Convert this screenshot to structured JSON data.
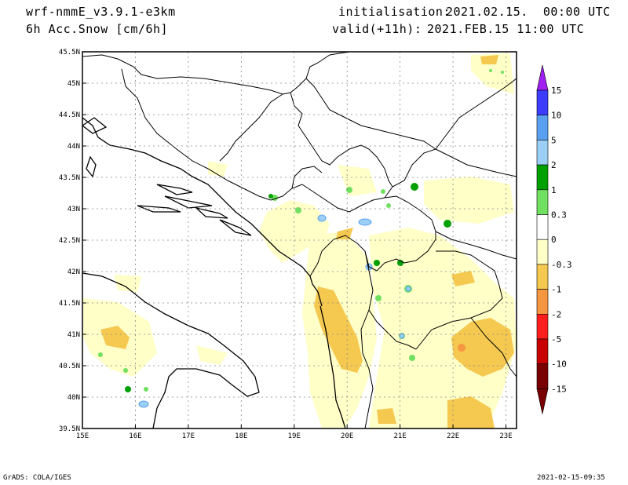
{
  "header": {
    "model": "wrf-nmmE_v3.9.1-e3km",
    "field": "6h Acc.Snow [cm/6h]",
    "init_label": "initialisation:",
    "init_value": "2021.02.15.  00:00 UTC",
    "valid_label": "valid(+11h):",
    "valid_value": "2021.FEB.15 11:00 UTC"
  },
  "map": {
    "lon_ticks": [
      "15E",
      "16E",
      "17E",
      "18E",
      "19E",
      "20E",
      "21E",
      "22E",
      "23E"
    ],
    "lat_ticks": [
      "45.5N",
      "45N",
      "44.5N",
      "44N",
      "43.5N",
      "43N",
      "42.5N",
      "42N",
      "41.5N",
      "41N",
      "40.5N",
      "40N",
      "39.5N"
    ],
    "grid": true
  },
  "legend": {
    "labels": [
      "15",
      "10",
      "5",
      "2",
      "1",
      "0.3",
      "0",
      "-0.3",
      "-1",
      "-2",
      "-5",
      "-10",
      "-15"
    ],
    "colors": [
      "#a020f0",
      "#3c3cff",
      "#5aa0f0",
      "#9ccff5",
      "#00a000",
      "#70e060",
      "#ffffff",
      "#ffffc8",
      "#f5c850",
      "#f59640",
      "#ff1e1e",
      "#c80000",
      "#780000"
    ]
  },
  "footer": {
    "left": "GrADS: COLA/IGES",
    "right": "2021-02-15-09:35"
  }
}
